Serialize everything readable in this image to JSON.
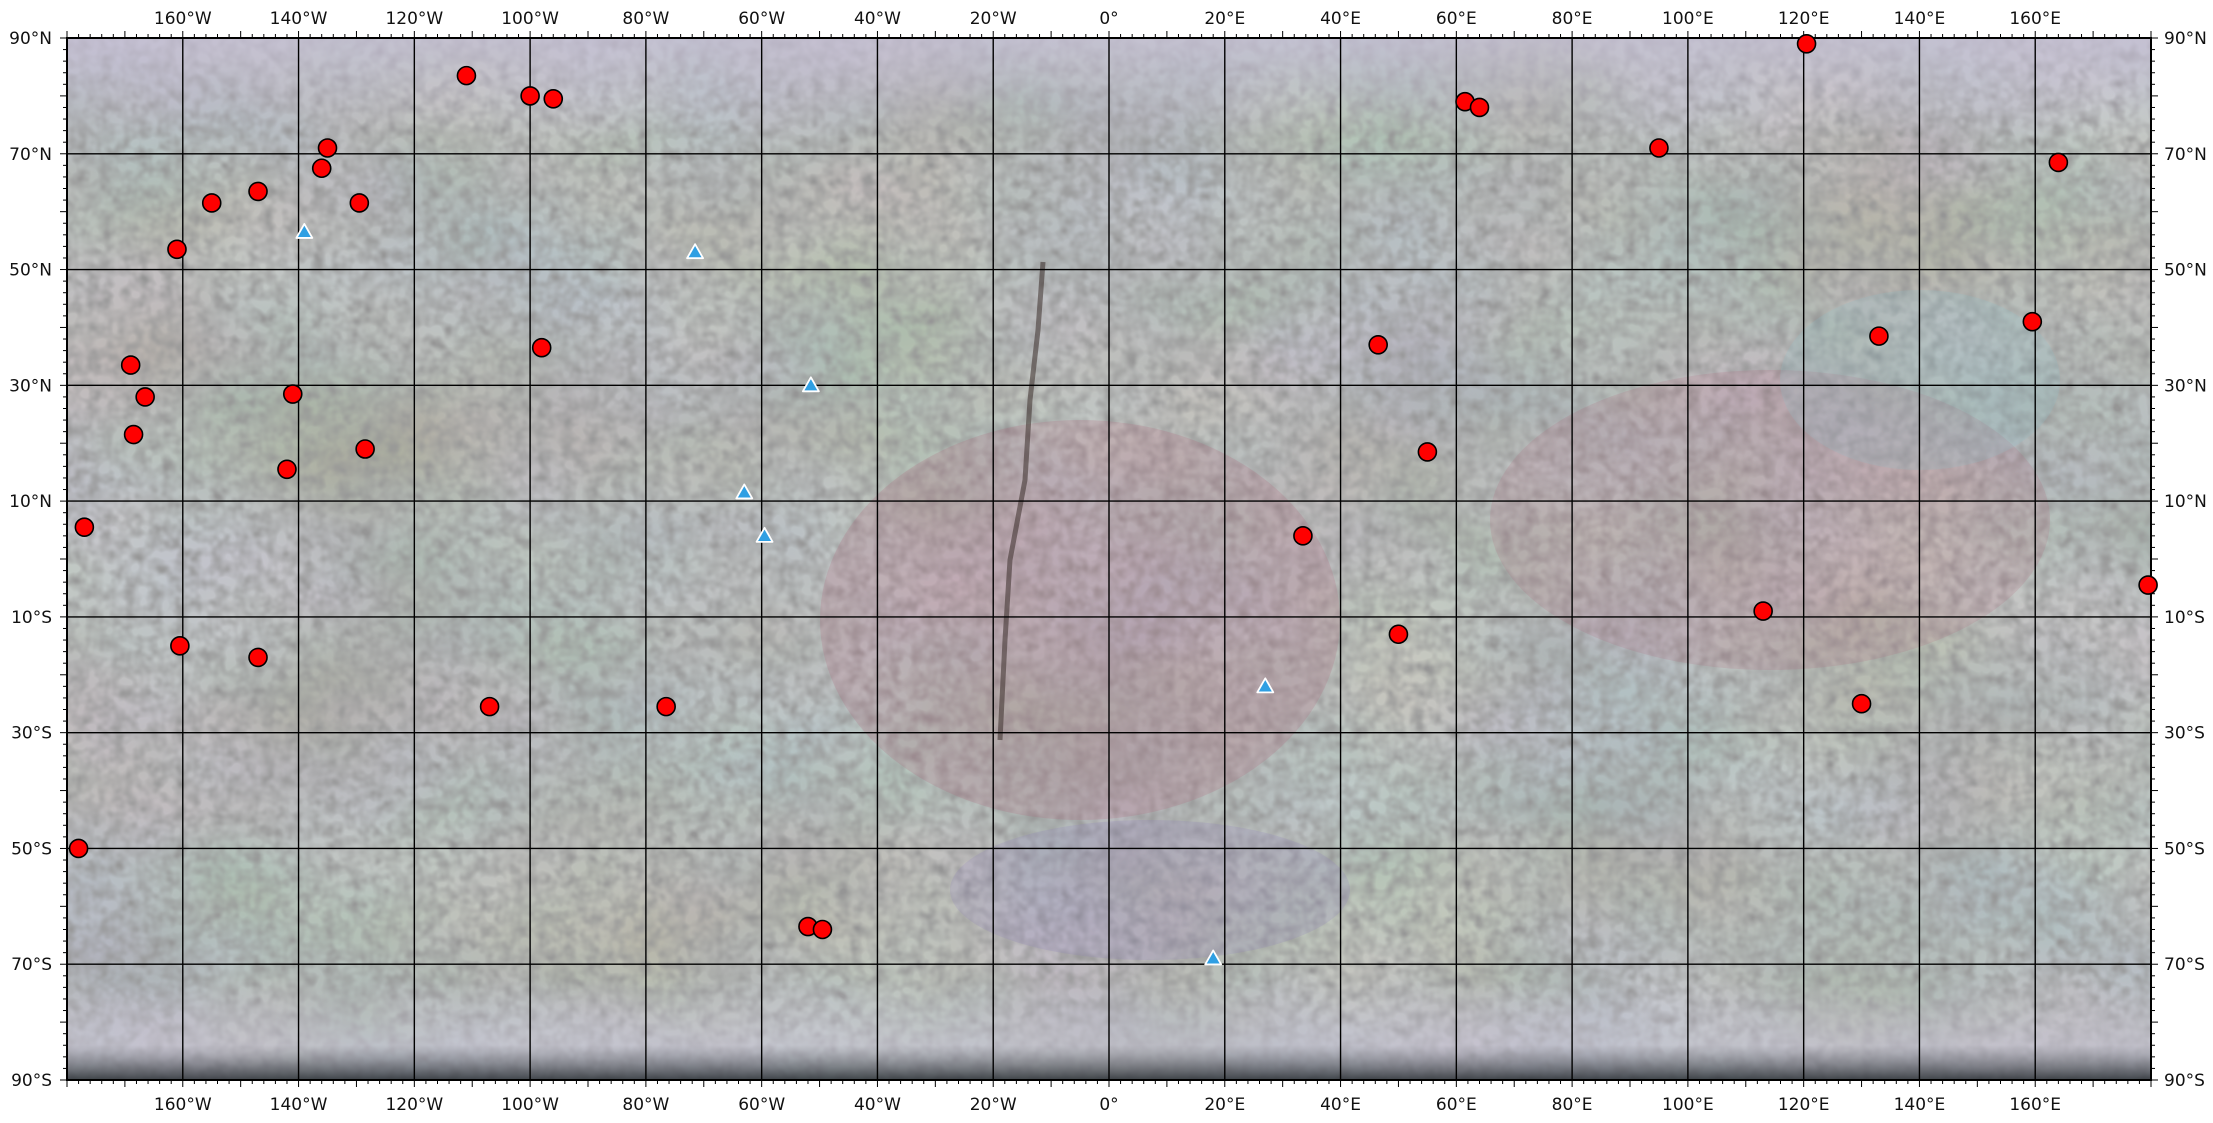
{
  "map": {
    "projection": "equirectangular",
    "lon_range": [
      -180,
      180
    ],
    "lat_range": [
      -90,
      90
    ],
    "grid_step_degrees": {
      "lon": 20,
      "lat": 20
    },
    "top_ticks": [
      "160°W",
      "140°W",
      "120°W",
      "100°W",
      "80°W",
      "60°W",
      "40°W",
      "20°W",
      "0°",
      "20°E",
      "40°E",
      "60°E",
      "80°E",
      "100°E",
      "120°E",
      "140°E",
      "160°E"
    ],
    "bottom_ticks": [
      "160°W",
      "140°W",
      "120°W",
      "100°W",
      "80°W",
      "60°W",
      "40°W",
      "20°W",
      "0°",
      "20°E",
      "40°E",
      "60°E",
      "80°E",
      "100°E",
      "120°E",
      "140°E",
      "160°E"
    ],
    "left_ticks": [
      "90°N",
      "70°N",
      "50°N",
      "30°N",
      "10°N",
      "10°S",
      "30°S",
      "50°S",
      "70°S",
      "90°S"
    ],
    "right_ticks": [
      "90°N",
      "70°N",
      "50°N",
      "30°N",
      "10°N",
      "10°S",
      "30°S",
      "50°S",
      "70°S",
      "90°S"
    ],
    "colors": {
      "base": "#9aa08c",
      "grid": "#000000",
      "circle_marker": "#ff0000",
      "triangle_marker": "#2f9fe3",
      "triangle_outline": "#ffffff"
    },
    "circle_markers": [
      {
        "lon": -177,
        "lat": 5.5
      },
      {
        "lon": -178,
        "lat": -50
      },
      {
        "lon": -169,
        "lat": 33.5
      },
      {
        "lon": -168.5,
        "lat": 21.5
      },
      {
        "lon": -166.5,
        "lat": 28
      },
      {
        "lon": -161,
        "lat": 53.5
      },
      {
        "lon": -160.5,
        "lat": -15
      },
      {
        "lon": -155,
        "lat": 61.5
      },
      {
        "lon": -147,
        "lat": 63.5
      },
      {
        "lon": -147,
        "lat": -17
      },
      {
        "lon": -142,
        "lat": 15.5
      },
      {
        "lon": -141,
        "lat": 28.5
      },
      {
        "lon": -136,
        "lat": 67.5
      },
      {
        "lon": -135,
        "lat": 71
      },
      {
        "lon": -129.5,
        "lat": 61.5
      },
      {
        "lon": -128.5,
        "lat": 19
      },
      {
        "lon": -111,
        "lat": 83.5
      },
      {
        "lon": -107,
        "lat": -25.5
      },
      {
        "lon": -100,
        "lat": 80
      },
      {
        "lon": -98,
        "lat": 36.5
      },
      {
        "lon": -96,
        "lat": 79.5
      },
      {
        "lon": -76.5,
        "lat": -25.5
      },
      {
        "lon": -52,
        "lat": -63.5
      },
      {
        "lon": -49.5,
        "lat": -64
      },
      {
        "lon": 33.5,
        "lat": 4
      },
      {
        "lon": 46.5,
        "lat": 37
      },
      {
        "lon": 50,
        "lat": -13
      },
      {
        "lon": 55,
        "lat": 18.5
      },
      {
        "lon": 61.5,
        "lat": 79
      },
      {
        "lon": 64,
        "lat": 78
      },
      {
        "lon": 95,
        "lat": 71
      },
      {
        "lon": 113,
        "lat": -9
      },
      {
        "lon": 120.5,
        "lat": 89
      },
      {
        "lon": 130,
        "lat": -25
      },
      {
        "lon": 133,
        "lat": 38.5
      },
      {
        "lon": 159.5,
        "lat": 41
      },
      {
        "lon": 164,
        "lat": 68.5
      },
      {
        "lon": 179.5,
        "lat": -4.5
      }
    ],
    "triangle_markers": [
      {
        "lon": -139,
        "lat": 56.5
      },
      {
        "lon": -71.5,
        "lat": 53
      },
      {
        "lon": -59.5,
        "lat": 4
      },
      {
        "lon": -51.5,
        "lat": 30
      },
      {
        "lon": -63,
        "lat": 11.5
      },
      {
        "lon": 27,
        "lat": -22
      },
      {
        "lon": 18,
        "lat": -69
      }
    ]
  }
}
